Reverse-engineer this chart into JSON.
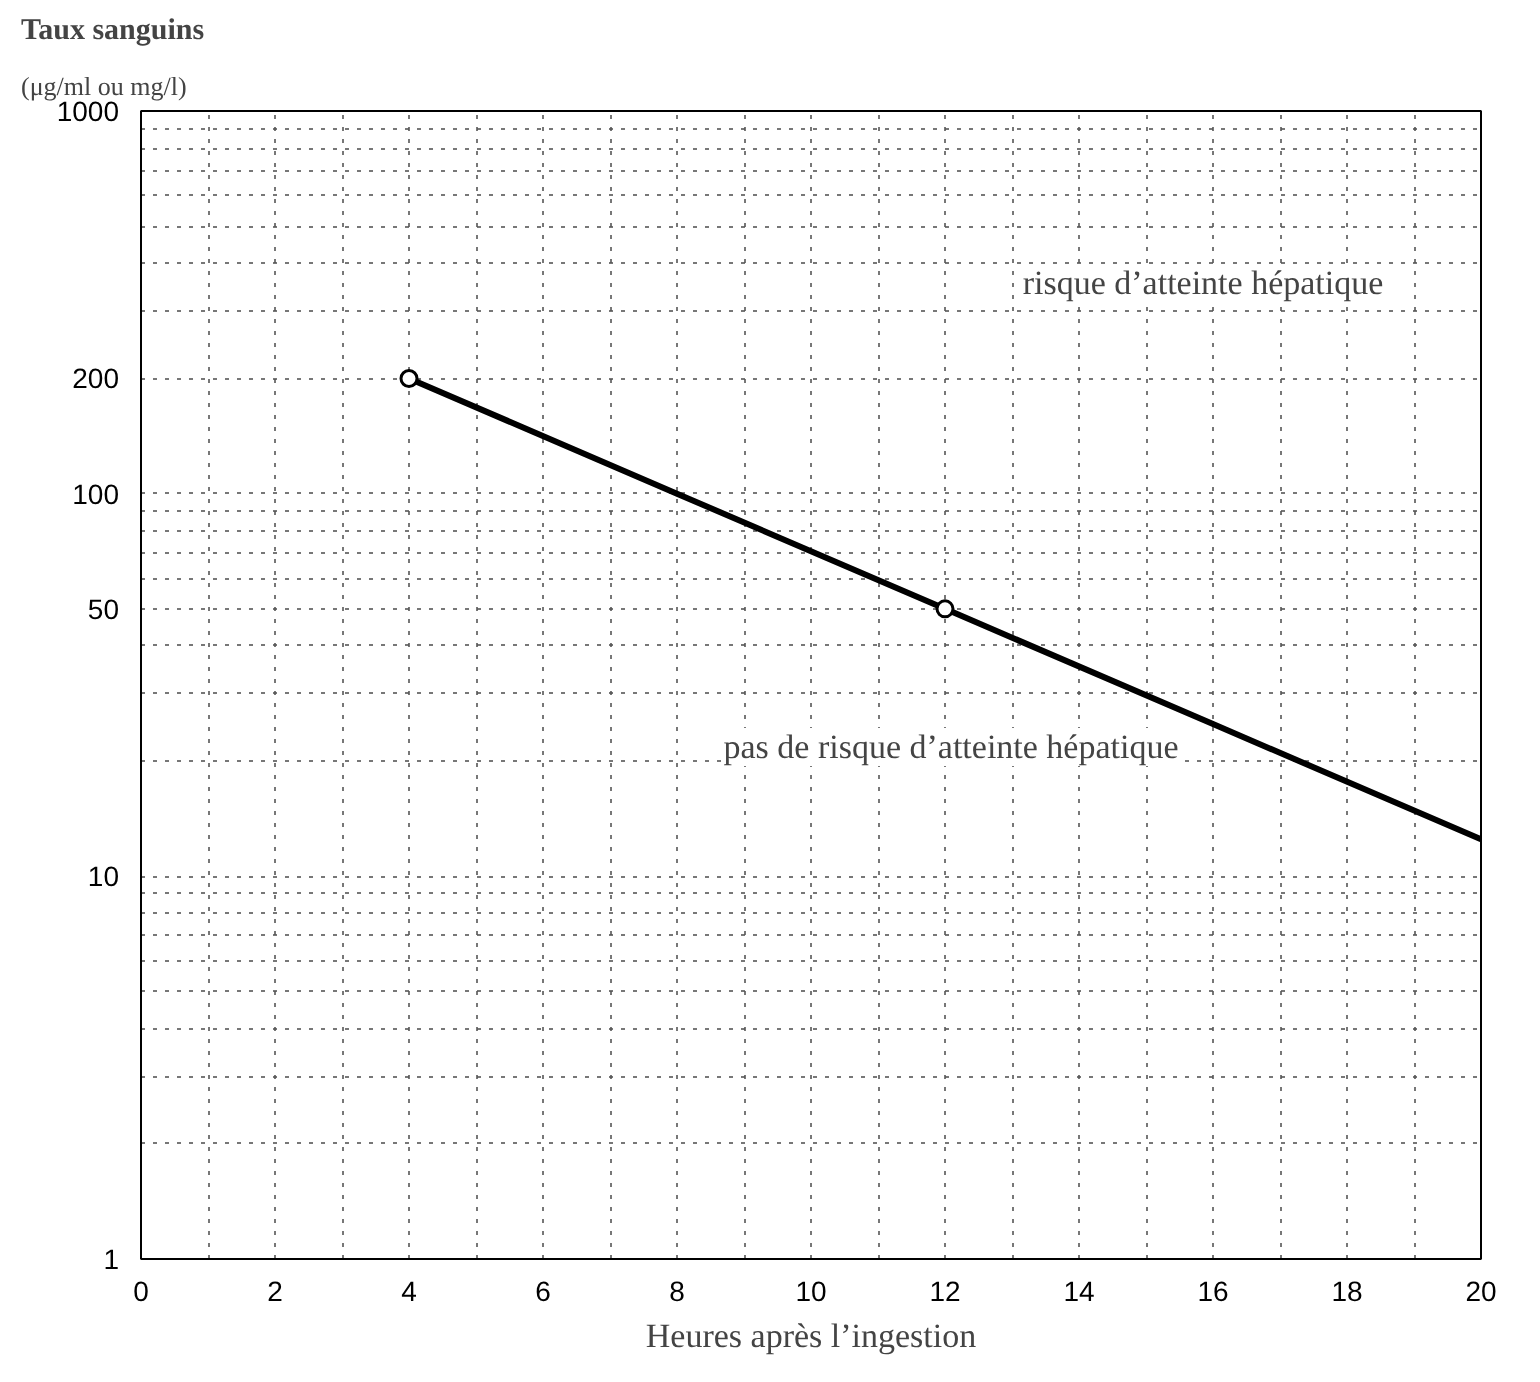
{
  "chart_data": {
    "type": "line",
    "title": "Taux sanguins",
    "subtitle": "(μg/ml ou mg/l)",
    "xlabel": "Heures après l’ingestion",
    "x": [
      4,
      8,
      12,
      16,
      20
    ],
    "series": [
      {
        "color": "#000000",
        "values": [
          200,
          100,
          50,
          25,
          12.5
        ],
        "marker": "none"
      },
      {
        "type": "scatter",
        "color": "#000000",
        "x": [
          4,
          12
        ],
        "values": [
          200,
          50
        ],
        "marker": "circle"
      }
    ],
    "log": "y",
    "xlim": [
      0,
      20
    ],
    "ylim": [
      1,
      1000
    ],
    "xticks": [
      0,
      {
        "value": 1,
        "label": null
      },
      2,
      {
        "value": 3,
        "label": null
      },
      4,
      {
        "value": 5,
        "label": null
      },
      6,
      {
        "value": 7,
        "label": null
      },
      8,
      {
        "value": 9,
        "label": null
      },
      10,
      {
        "value": 11,
        "label": null
      },
      12,
      {
        "value": 13,
        "label": null
      },
      14,
      {
        "value": 15,
        "label": null
      },
      16,
      {
        "value": 17,
        "label": null
      },
      18,
      {
        "value": 19,
        "label": null
      },
      20
    ],
    "yticks": [
      1,
      {
        "value": 2,
        "label": null
      },
      {
        "value": 3,
        "label": null
      },
      {
        "value": 4,
        "label": null
      },
      {
        "value": 5,
        "label": null
      },
      {
        "value": 6,
        "label": null
      },
      {
        "value": 7,
        "label": null
      },
      {
        "value": 8,
        "label": null
      },
      {
        "value": 9,
        "label": null
      },
      10,
      {
        "value": 20,
        "label": null
      },
      {
        "value": 30,
        "label": null
      },
      {
        "value": 40,
        "label": null
      },
      50,
      {
        "value": 60,
        "label": null
      },
      {
        "value": 70,
        "label": null
      },
      {
        "value": 80,
        "label": null
      },
      {
        "value": 90,
        "label": null
      },
      100,
      200,
      {
        "value": 300,
        "label": null
      },
      {
        "value": 400,
        "label": null
      },
      {
        "value": 500,
        "label": null
      },
      {
        "value": 600,
        "label": null
      },
      {
        "value": 700,
        "label": null
      },
      {
        "value": 800,
        "label": null
      },
      {
        "value": 900,
        "label": null
      },
      1000
    ],
    "grid": true,
    "line_style": "solid",
    "annotations": [
      "risque d’atteinte hépatique",
      "pas de risque d’atteinte hépatique"
    ]
  }
}
